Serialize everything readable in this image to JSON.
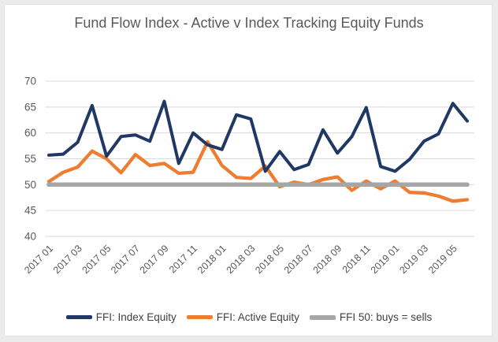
{
  "chart_data": {
    "type": "line",
    "title": "Fund Flow Index - Active v Index Tracking Equity Funds",
    "ylim": [
      40,
      70
    ],
    "yticks": [
      40,
      45,
      50,
      55,
      60,
      65,
      70
    ],
    "x_tick_interval": 2,
    "grid": true,
    "legend_position": "bottom",
    "categories": [
      "2017 01",
      "2017 02",
      "2017 03",
      "2017 04",
      "2017 05",
      "2017 06",
      "2017 07",
      "2017 08",
      "2017 09",
      "2017 10",
      "2017 11",
      "2017 12",
      "2018 01",
      "2018 02",
      "2018 03",
      "2018 04",
      "2018 05",
      "2018 06",
      "2018 07",
      "2018 08",
      "2018 09",
      "2018 10",
      "2018 11",
      "2018 12",
      "2019 01",
      "2019 02",
      "2019 03",
      "2019 04",
      "2019 05",
      "2019 06"
    ],
    "series": [
      {
        "name": "FFI: Index Equity",
        "color": "#1f3864",
        "values": [
          55.7,
          55.9,
          58.2,
          65.3,
          55.5,
          59.3,
          59.6,
          58.4,
          66.1,
          54.1,
          60.0,
          57.7,
          56.8,
          63.5,
          62.7,
          52.6,
          56.4,
          52.9,
          53.9,
          60.6,
          56.1,
          59.3,
          64.9,
          53.5,
          52.6,
          54.9,
          58.4,
          59.8,
          65.7,
          62.3
        ]
      },
      {
        "name": "FFI: Active Equity",
        "color": "#ed7d31",
        "values": [
          50.6,
          52.4,
          53.4,
          56.5,
          55.0,
          52.3,
          55.8,
          53.7,
          54.1,
          52.2,
          52.4,
          58.3,
          53.7,
          51.4,
          51.2,
          53.6,
          49.6,
          50.5,
          50.0,
          51.0,
          51.5,
          48.9,
          50.7,
          49.2,
          50.7,
          48.5,
          48.4,
          47.8,
          46.8,
          47.1
        ]
      },
      {
        "name": "FFI 50: buys = sells",
        "color": "#a6a6a6",
        "constant": 50
      }
    ]
  },
  "colors": {
    "gridline": "#d9d9d9",
    "axis_text": "#595959",
    "title_text": "#595959",
    "legend_text": "#404040",
    "background": "#ffffff",
    "frame": "#ebebeb"
  }
}
